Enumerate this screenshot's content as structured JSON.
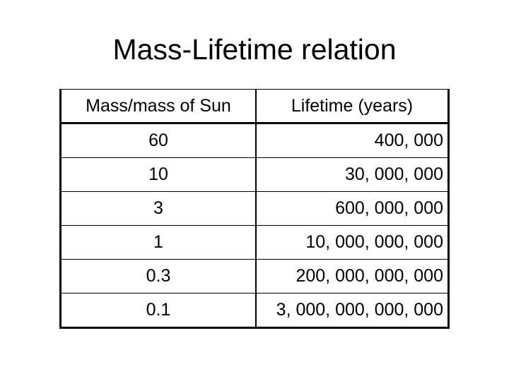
{
  "title": "Mass-Lifetime relation",
  "table": {
    "header": [
      "Mass/mass of Sun",
      "Lifetime (years)"
    ],
    "rows": [
      [
        "60",
        "400, 000"
      ],
      [
        "10",
        "30, 000, 000"
      ],
      [
        "3",
        "600, 000, 000"
      ],
      [
        "1",
        "10, 000, 000, 000"
      ],
      [
        "0.3",
        "200, 000, 000, 000"
      ],
      [
        "0.1",
        "3, 000, 000, 000, 000"
      ]
    ]
  }
}
